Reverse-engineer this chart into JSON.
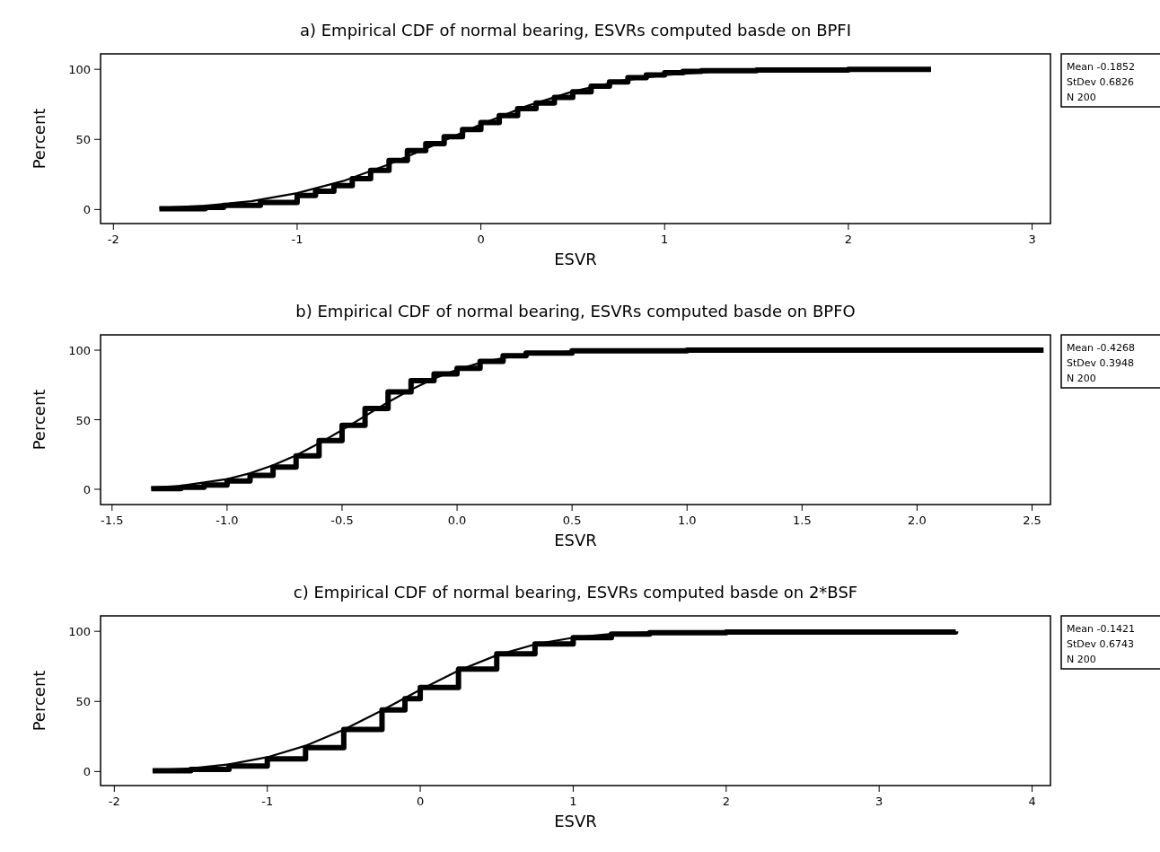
{
  "chart_data": [
    {
      "type": "line",
      "title": "a) Empirical CDF of normal bearing,  ESVRs computed basde on BPFI",
      "xlabel": "ESVR",
      "ylabel": "Percent",
      "xlim": [
        -2.07,
        3.1
      ],
      "xticks": [
        -2,
        -1,
        0,
        1,
        2,
        3
      ],
      "ylim": [
        -10,
        111
      ],
      "yticks": [
        0,
        50,
        100
      ],
      "grid": false,
      "marker": "none",
      "line_style": "solid",
      "annotations": [
        "Mean -0.1852",
        "StDev 0.6826",
        "N 200"
      ],
      "series": [
        {
          "type": "step",
          "color": "#000000",
          "x": [
            -1.75,
            -1.5,
            -1.4,
            -1.2,
            -1.0,
            -0.9,
            -0.8,
            -0.7,
            -0.6,
            -0.5,
            -0.4,
            -0.3,
            -0.2,
            -0.1,
            0,
            0.1,
            0.2,
            0.3,
            0.4,
            0.5,
            0.6,
            0.7,
            0.8,
            0.9,
            1.0,
            1.1,
            1.2,
            1.5,
            2.0,
            2.45
          ],
          "values": [
            0.5,
            1.5,
            3,
            5,
            10,
            13,
            17,
            22,
            28,
            35,
            42,
            47,
            52,
            57,
            62,
            67,
            72,
            76,
            80,
            84,
            88,
            91,
            94,
            96,
            97.5,
            98.5,
            99,
            99.5,
            100,
            100
          ]
        },
        {
          "color": "#000000",
          "x": [
            -1.75,
            -1.5,
            -1.25,
            -1.0,
            -0.75,
            -0.5,
            -0.25,
            0,
            0.25,
            0.5,
            0.75,
            1.0,
            1.25,
            1.5,
            2.0,
            2.45
          ],
          "values": [
            1.1,
            2.7,
            5.9,
            11.7,
            20.3,
            32.3,
            46.2,
            60.7,
            73.8,
            84.2,
            91.5,
            95.9,
            98.2,
            99.3,
            99.9,
            100
          ]
        }
      ]
    },
    {
      "type": "line",
      "title": "b) Empirical CDF of normal bearing,    ESVRs computed basde on BPFO",
      "xlabel": "ESVR",
      "ylabel": "Percent",
      "xlim": [
        -1.55,
        2.58
      ],
      "xticks": [
        {
          "value": -1.5,
          "label": "-1.5"
        },
        {
          "value": -1,
          "label": "-1.0"
        },
        {
          "value": -0.5,
          "label": "-0.5"
        },
        {
          "value": 0,
          "label": "0.0"
        },
        {
          "value": 0.5,
          "label": "0.5"
        },
        {
          "value": 1,
          "label": "1.0"
        },
        {
          "value": 1.5,
          "label": "1.5"
        },
        {
          "value": 2,
          "label": "2.0"
        },
        {
          "value": 2.5,
          "label": "2.5"
        }
      ],
      "ylim": [
        -11,
        111
      ],
      "yticks": [
        0,
        50,
        100
      ],
      "grid": false,
      "marker": "none",
      "line_style": "solid",
      "annotations": [
        "Mean -0.4268",
        "StDev 0.3948",
        "N 200"
      ],
      "series": [
        {
          "type": "step",
          "color": "#000000",
          "x": [
            -1.33,
            -1.2,
            -1.1,
            -1.0,
            -0.9,
            -0.8,
            -0.7,
            -0.6,
            -0.5,
            -0.4,
            -0.3,
            -0.2,
            -0.1,
            0,
            0.1,
            0.2,
            0.3,
            0.5,
            1.0,
            2.35,
            2.55
          ],
          "values": [
            0.5,
            1.5,
            3,
            6,
            10,
            16,
            24,
            35,
            46,
            58,
            70,
            78,
            83,
            87,
            92,
            96,
            98,
            99.5,
            100,
            100,
            100
          ]
        },
        {
          "color": "#000000",
          "x": [
            -1.33,
            -1.2,
            -1.0,
            -0.9,
            -0.8,
            -0.7,
            -0.6,
            -0.5,
            -0.4,
            -0.3,
            -0.2,
            -0.1,
            0,
            0.1,
            0.2,
            0.3,
            0.5,
            0.75,
            1.0,
            2.35
          ],
          "values": [
            1.1,
            2.5,
            7.3,
            11.5,
            17.2,
            24.4,
            33.0,
            42.6,
            52.7,
            62.6,
            71.7,
            79.6,
            86.0,
            90.9,
            94.4,
            96.7,
            99.1,
            99.9,
            100,
            100
          ]
        }
      ]
    },
    {
      "type": "line",
      "title": "c) Empirical CDF of normal bearing,  ESVRs computed basde on 2*BSF",
      "xlabel": "ESVR",
      "ylabel": "Percent",
      "xlim": [
        -2.09,
        4.12
      ],
      "xticks": [
        -2,
        -1,
        0,
        1,
        2,
        3,
        4
      ],
      "ylim": [
        -10,
        111
      ],
      "yticks": [
        0,
        50,
        100
      ],
      "grid": false,
      "marker": "none",
      "line_style": "solid",
      "annotations": [
        "Mean -0.1421",
        "StDev 0.6743",
        "N 200"
      ],
      "series": [
        {
          "type": "step",
          "color": "#000000",
          "x": [
            -1.75,
            -1.5,
            -1.25,
            -1.0,
            -0.75,
            -0.5,
            -0.25,
            -0.1,
            0,
            0.25,
            0.5,
            0.75,
            1.0,
            1.25,
            1.5,
            2.0,
            3.5
          ],
          "values": [
            0.5,
            1.5,
            4,
            9,
            17,
            30,
            44,
            52,
            60,
            73,
            84,
            91,
            95.5,
            98,
            99,
            99.5,
            100
          ]
        },
        {
          "color": "#000000",
          "x": [
            -1.75,
            -1.5,
            -1.25,
            -1.0,
            -0.75,
            -0.5,
            -0.25,
            0,
            0.25,
            0.5,
            0.75,
            1.0,
            1.25,
            1.5,
            2.0,
            3.5
          ],
          "values": [
            0.9,
            2.2,
            5.1,
            10.2,
            18.4,
            29.8,
            43.6,
            58.3,
            72.0,
            82.9,
            90.7,
            95.5,
            98.1,
            99.3,
            99.9,
            100
          ]
        }
      ]
    }
  ]
}
